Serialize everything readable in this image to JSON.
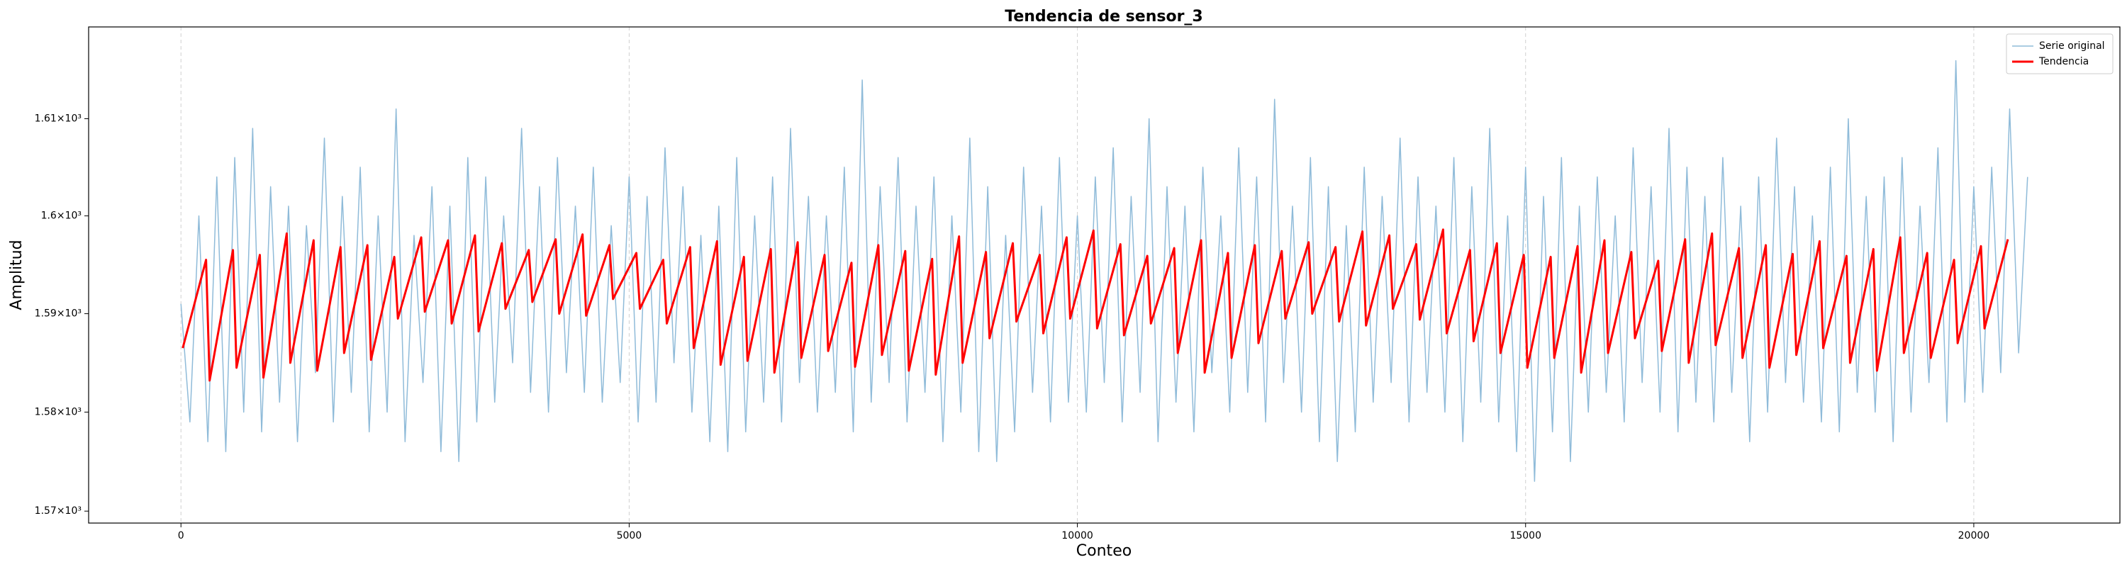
{
  "chart_data": {
    "type": "line",
    "title": "Tendencia de sensor_3",
    "xlabel": "Conteo",
    "ylabel": "Amplitud",
    "yscale": "log",
    "grid": "x",
    "legend": "upper right",
    "xlim": [
      -1030,
      21630
    ],
    "xticks": [
      0,
      5000,
      10000,
      15000,
      20000
    ],
    "ylim": [
      1568.8,
      1619.5
    ],
    "yticks": [
      {
        "value": 1570,
        "label": "1.57×10³"
      },
      {
        "value": 1580,
        "label": "1.58×10³"
      },
      {
        "value": 1590,
        "label": "1.59×10³"
      },
      {
        "value": 1600,
        "label": "1.6×10³"
      },
      {
        "value": 1610,
        "label": "1.61×10³"
      }
    ],
    "series": [
      {
        "name": "Serie original",
        "color": "#8fbbd9",
        "width": 1.5,
        "x": [
          0,
          100,
          200,
          300,
          400,
          500,
          600,
          700,
          800,
          900,
          1000,
          1100,
          1200,
          1300,
          1400,
          1500,
          1600,
          1700,
          1800,
          1900,
          2000,
          2100,
          2200,
          2300,
          2400,
          2500,
          2600,
          2700,
          2800,
          2900,
          3000,
          3100,
          3200,
          3300,
          3400,
          3500,
          3600,
          3700,
          3800,
          3900,
          4000,
          4100,
          4200,
          4300,
          4400,
          4500,
          4600,
          4700,
          4800,
          4900,
          5000,
          5100,
          5200,
          5300,
          5400,
          5500,
          5600,
          5700,
          5800,
          5900,
          6000,
          6100,
          6200,
          6300,
          6400,
          6500,
          6600,
          6700,
          6800,
          6900,
          7000,
          7100,
          7200,
          7300,
          7400,
          7500,
          7600,
          7700,
          7800,
          7900,
          8000,
          8100,
          8200,
          8300,
          8400,
          8500,
          8600,
          8700,
          8800,
          8900,
          9000,
          9100,
          9200,
          9300,
          9400,
          9500,
          9600,
          9700,
          9800,
          9900,
          10000,
          10100,
          10200,
          10300,
          10400,
          10500,
          10600,
          10700,
          10800,
          10900,
          11000,
          11100,
          11200,
          11300,
          11400,
          11500,
          11600,
          11700,
          11800,
          11900,
          12000,
          12100,
          12200,
          12300,
          12400,
          12500,
          12600,
          12700,
          12800,
          12900,
          13000,
          13100,
          13200,
          13300,
          13400,
          13500,
          13600,
          13700,
          13800,
          13900,
          14000,
          14100,
          14200,
          14300,
          14400,
          14500,
          14600,
          14700,
          14800,
          14900,
          15000,
          15100,
          15200,
          15300,
          15400,
          15500,
          15600,
          15700,
          15800,
          15900,
          16000,
          16100,
          16200,
          16300,
          16400,
          16500,
          16600,
          16700,
          16800,
          16900,
          17000,
          17100,
          17200,
          17300,
          17400,
          17500,
          17600,
          17700,
          17800,
          17900,
          18000,
          18100,
          18200,
          18300,
          18400,
          18500,
          18600,
          18700,
          18800,
          18900,
          19000,
          19100,
          19200,
          19300,
          19400,
          19500,
          19600,
          19700,
          19800,
          19900,
          20000,
          20100,
          20200,
          20300,
          20400,
          20500,
          20600
        ],
        "values": [
          1591,
          1579,
          1600,
          1577,
          1604,
          1576,
          1606,
          1580,
          1609,
          1578,
          1603,
          1581,
          1601,
          1577,
          1599,
          1584,
          1608,
          1579,
          1602,
          1582,
          1605,
          1578,
          1600,
          1580,
          1611,
          1577,
          1598,
          1583,
          1603,
          1576,
          1601,
          1575,
          1606,
          1579,
          1604,
          1581,
          1600,
          1585,
          1609,
          1582,
          1603,
          1580,
          1606,
          1584,
          1601,
          1582,
          1605,
          1581,
          1599,
          1583,
          1604,
          1579,
          1602,
          1581,
          1607,
          1585,
          1603,
          1580,
          1598,
          1577,
          1601,
          1576,
          1606,
          1578,
          1600,
          1581,
          1604,
          1579,
          1609,
          1583,
          1602,
          1580,
          1600,
          1582,
          1605,
          1578,
          1614,
          1581,
          1603,
          1583,
          1606,
          1579,
          1601,
          1582,
          1604,
          1577,
          1600,
          1580,
          1608,
          1576,
          1603,
          1575,
          1598,
          1578,
          1605,
          1582,
          1601,
          1579,
          1606,
          1581,
          1600,
          1580,
          1604,
          1583,
          1607,
          1579,
          1602,
          1582,
          1610,
          1577,
          1603,
          1581,
          1601,
          1578,
          1605,
          1584,
          1600,
          1580,
          1607,
          1582,
          1604,
          1579,
          1612,
          1583,
          1601,
          1580,
          1606,
          1577,
          1603,
          1575,
          1599,
          1578,
          1605,
          1581,
          1602,
          1583,
          1608,
          1579,
          1604,
          1582,
          1601,
          1580,
          1606,
          1577,
          1603,
          1581,
          1609,
          1579,
          1600,
          1576,
          1605,
          1573,
          1602,
          1578,
          1606,
          1575,
          1601,
          1580,
          1604,
          1582,
          1600,
          1579,
          1607,
          1583,
          1603,
          1580,
          1609,
          1578,
          1605,
          1581,
          1602,
          1579,
          1606,
          1582,
          1601,
          1577,
          1604,
          1580,
          1608,
          1583,
          1603,
          1581,
          1600,
          1579,
          1605,
          1578,
          1610,
          1582,
          1602,
          1580,
          1604,
          1577,
          1606,
          1580,
          1601,
          1583,
          1607,
          1579,
          1616,
          1581,
          1603,
          1582,
          1605,
          1584,
          1611,
          1586,
          1604
        ]
      },
      {
        "name": "Tendencia",
        "color": "#ff0000",
        "width": 3,
        "x": [
          20,
          280,
          320,
          580,
          620,
          880,
          920,
          1180,
          1220,
          1480,
          1520,
          1780,
          1820,
          2080,
          2120,
          2380,
          2420,
          2680,
          2720,
          2980,
          3020,
          3280,
          3320,
          3580,
          3620,
          3880,
          3920,
          4180,
          4220,
          4480,
          4520,
          4780,
          4820,
          5080,
          5120,
          5380,
          5420,
          5680,
          5720,
          5980,
          6020,
          6280,
          6320,
          6580,
          6620,
          6880,
          6920,
          7180,
          7220,
          7480,
          7520,
          7780,
          7820,
          8080,
          8120,
          8380,
          8420,
          8680,
          8720,
          8980,
          9020,
          9280,
          9320,
          9580,
          9620,
          9880,
          9920,
          10180,
          10220,
          10480,
          10520,
          10780,
          10820,
          11080,
          11120,
          11380,
          11420,
          11680,
          11720,
          11980,
          12020,
          12280,
          12320,
          12580,
          12620,
          12880,
          12920,
          13180,
          13220,
          13480,
          13520,
          13780,
          13820,
          14080,
          14120,
          14380,
          14420,
          14680,
          14720,
          14980,
          15020,
          15280,
          15320,
          15580,
          15620,
          15880,
          15920,
          16180,
          16220,
          16480,
          16520,
          16780,
          16820,
          17080,
          17120,
          17380,
          17420,
          17680,
          17720,
          17980,
          18020,
          18280,
          18320,
          18580,
          18620,
          18880,
          18920,
          19180,
          19220,
          19480,
          19520,
          19780,
          19820,
          20080,
          20120,
          20380
        ],
        "values": [
          1586.5,
          1595.5,
          1583.2,
          1596.5,
          1584.5,
          1596.0,
          1583.5,
          1598.2,
          1585.0,
          1597.5,
          1584.2,
          1596.8,
          1586.0,
          1597.0,
          1585.3,
          1595.8,
          1589.5,
          1597.8,
          1590.2,
          1597.5,
          1589.0,
          1598.0,
          1588.2,
          1597.2,
          1590.5,
          1596.5,
          1591.2,
          1597.6,
          1590.0,
          1598.1,
          1589.8,
          1597.0,
          1591.5,
          1596.2,
          1590.5,
          1595.5,
          1589.0,
          1596.8,
          1586.5,
          1597.4,
          1584.8,
          1595.8,
          1585.2,
          1596.6,
          1584.0,
          1597.3,
          1585.5,
          1596.0,
          1586.2,
          1595.2,
          1584.6,
          1597.0,
          1585.8,
          1596.4,
          1584.2,
          1595.6,
          1583.8,
          1597.9,
          1585.0,
          1596.3,
          1587.5,
          1597.2,
          1589.2,
          1596.0,
          1588.0,
          1597.8,
          1589.5,
          1598.5,
          1588.5,
          1597.1,
          1587.8,
          1595.9,
          1589.0,
          1596.7,
          1586.0,
          1597.5,
          1584.0,
          1596.2,
          1585.5,
          1597.0,
          1587.0,
          1596.4,
          1589.5,
          1597.3,
          1590.0,
          1596.8,
          1589.2,
          1598.4,
          1588.8,
          1598.0,
          1590.5,
          1597.1,
          1589.4,
          1598.6,
          1588.0,
          1596.5,
          1587.2,
          1597.2,
          1586.0,
          1596.0,
          1584.5,
          1595.8,
          1585.5,
          1596.9,
          1584.0,
          1597.5,
          1586.0,
          1596.3,
          1587.5,
          1595.4,
          1586.2,
          1597.6,
          1585.0,
          1598.2,
          1586.8,
          1596.7,
          1585.5,
          1597.0,
          1584.5,
          1596.1,
          1585.8,
          1597.4,
          1586.5,
          1595.9,
          1585.0,
          1596.6,
          1584.2,
          1597.8,
          1586.0,
          1596.2,
          1585.5,
          1595.5,
          1587.0,
          1596.9,
          1588.5,
          1597.6
        ]
      }
    ]
  }
}
